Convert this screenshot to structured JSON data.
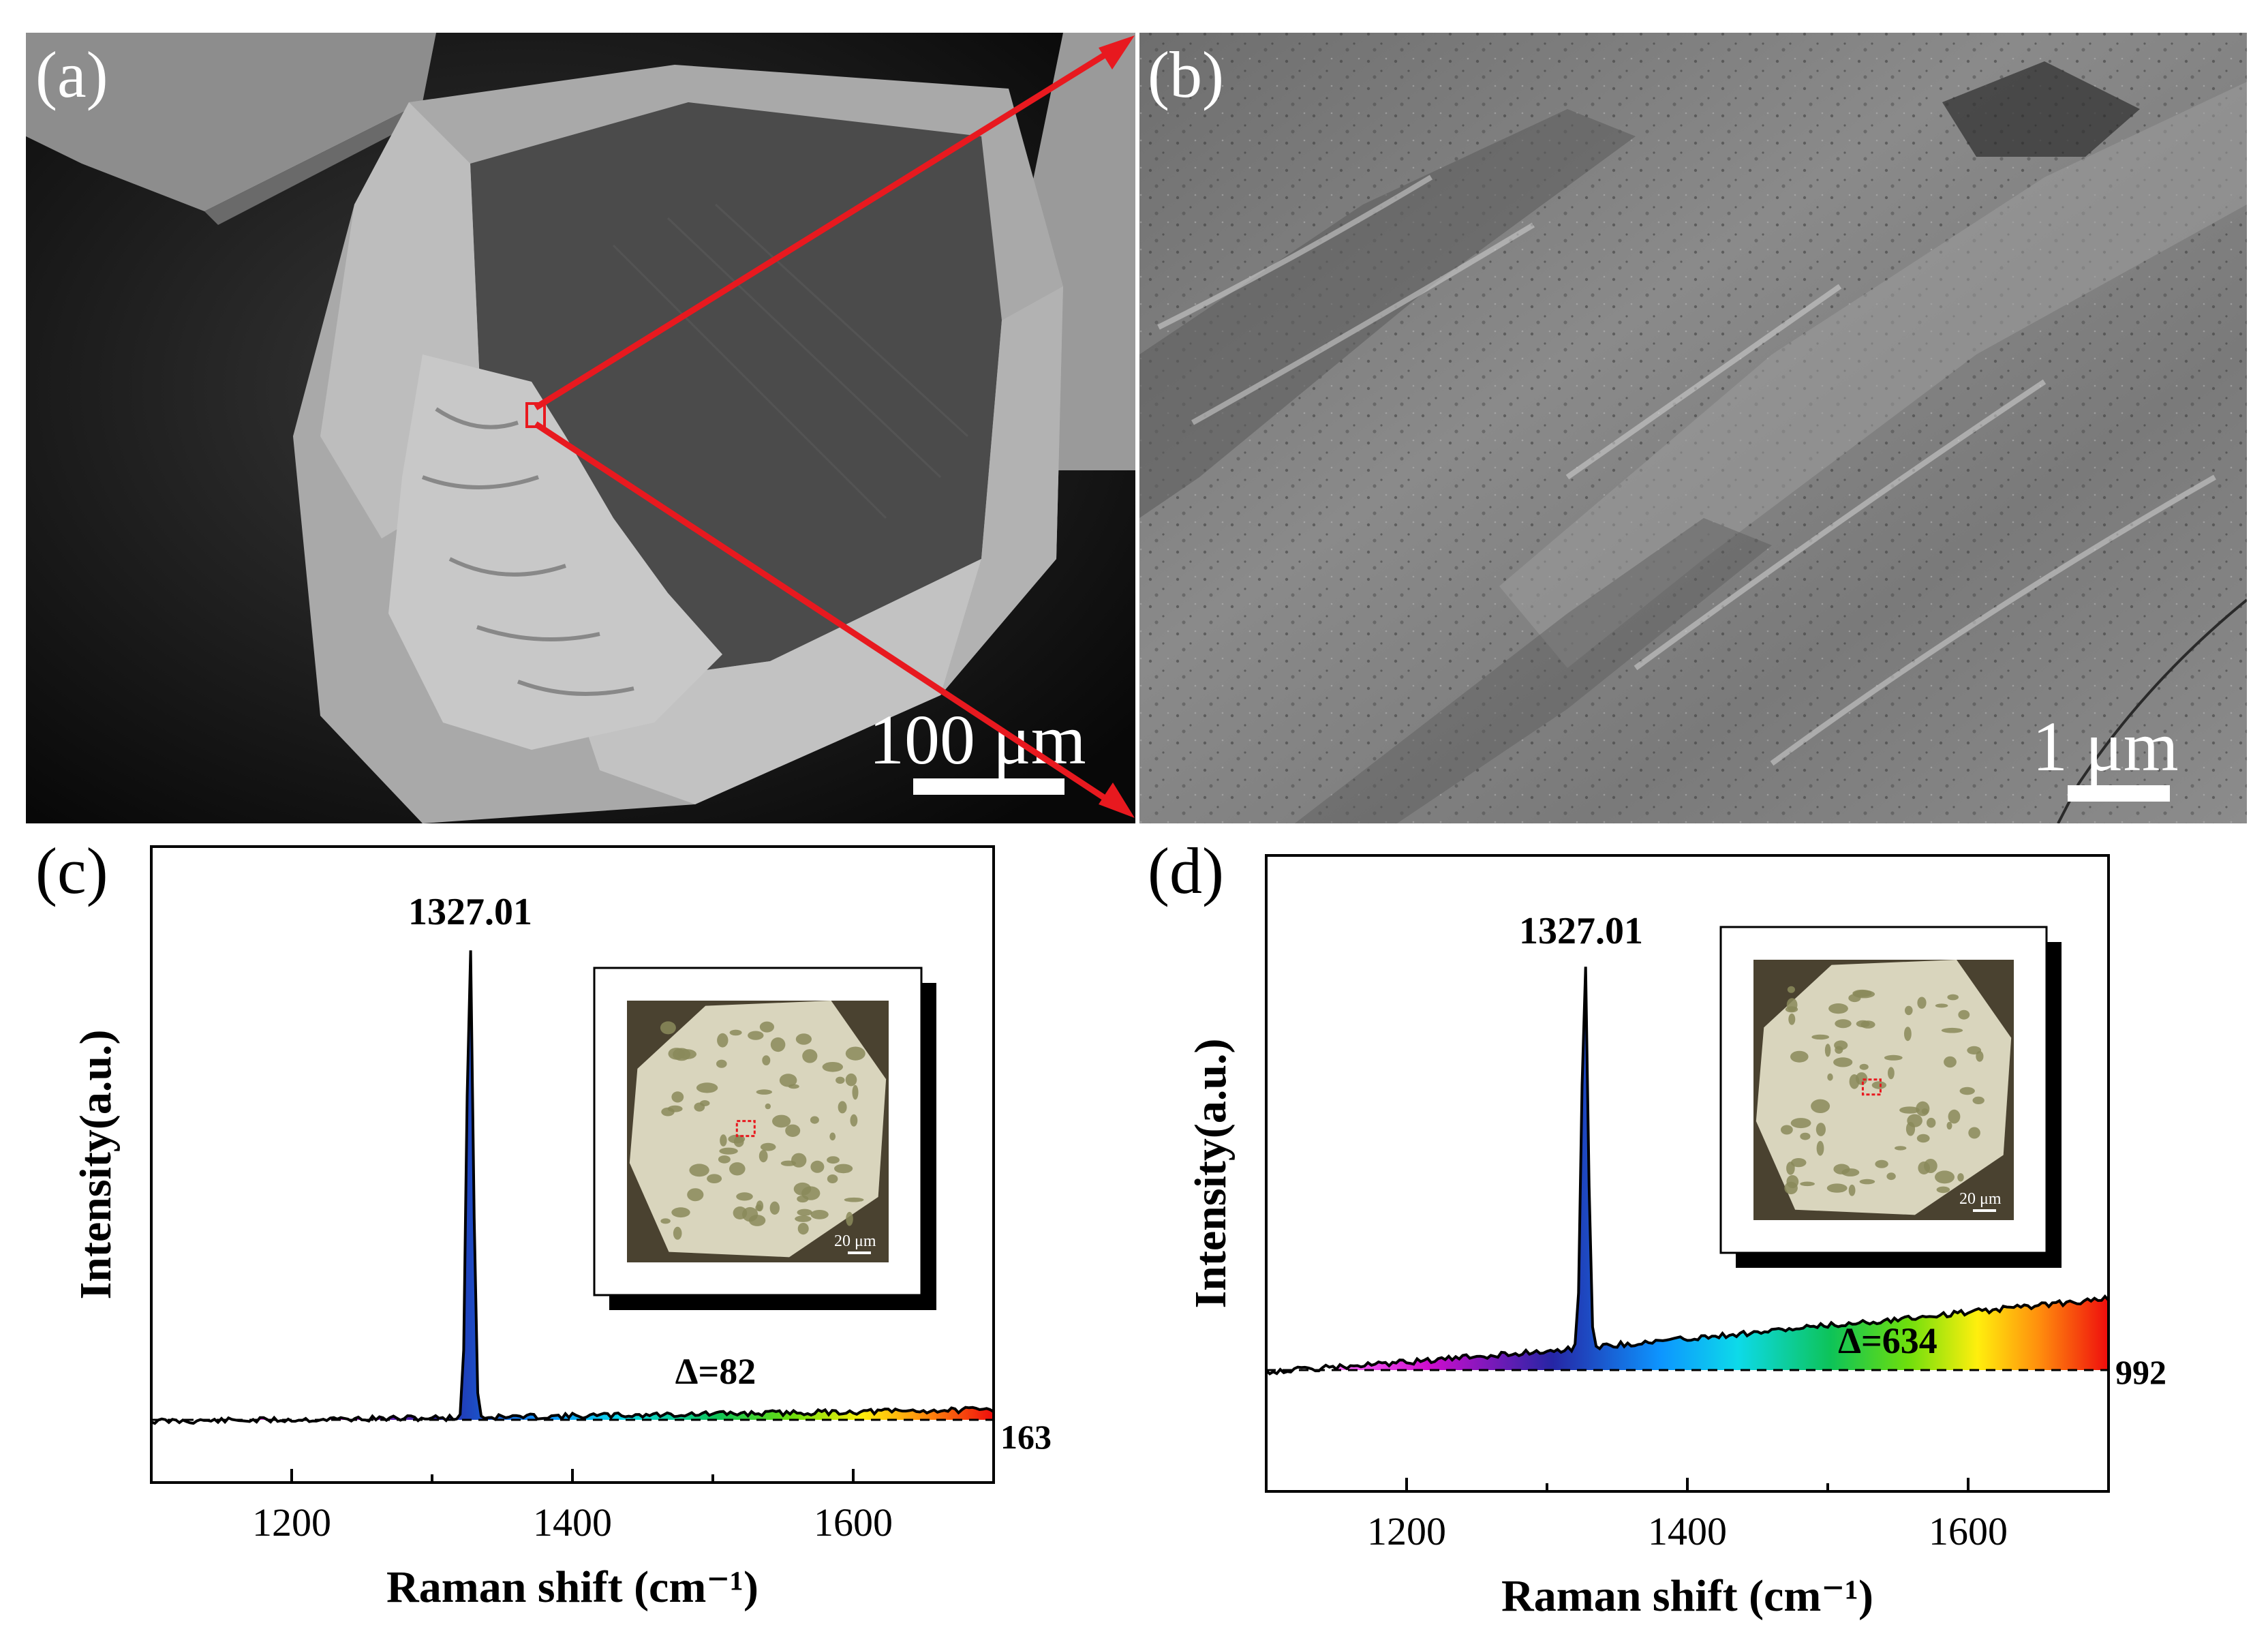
{
  "panels": {
    "a": {
      "label": "(a)",
      "scale_bar": "100 μm"
    },
    "b": {
      "label": "(b)",
      "scale_bar": "1 μm"
    },
    "c": {
      "label": "(c)"
    },
    "d": {
      "label": "(d)"
    }
  },
  "colors": {
    "zoom_arrow": "#e8191f",
    "spectrum": "#000000",
    "sem_background": "#0c0c0c",
    "inset_crystal": "#d9d5bd",
    "inset_marker": "#e8191f"
  },
  "chart_data": [
    {
      "panel": "c",
      "type": "line",
      "xlabel": "Raman shift (cm⁻¹)",
      "ylabel": "Intensity(a.u.)",
      "xlim": [
        1100,
        1700
      ],
      "xticks": [
        1200,
        1400,
        1600
      ],
      "yticks": false,
      "grid": false,
      "peak": {
        "x": 1327.01,
        "label": "1327.01"
      },
      "baseline_label": "163",
      "delta_label": "Δ=82",
      "fill": "rainbow gradient between spectrum and dashed baseline",
      "inset": {
        "scale_bar": "20 μm"
      }
    },
    {
      "panel": "d",
      "type": "line",
      "xlabel": "Raman shift (cm⁻¹)",
      "ylabel": "Intensity(a.u.)",
      "xlim": [
        1100,
        1700
      ],
      "xticks": [
        1200,
        1400,
        1600
      ],
      "yticks": false,
      "grid": false,
      "peak": {
        "x": 1327.01,
        "label": "1327.01"
      },
      "baseline_label": "992",
      "delta_label": "Δ=634",
      "fill": "rainbow gradient between spectrum and dashed baseline",
      "inset": {
        "scale_bar": "20 μm"
      }
    }
  ]
}
